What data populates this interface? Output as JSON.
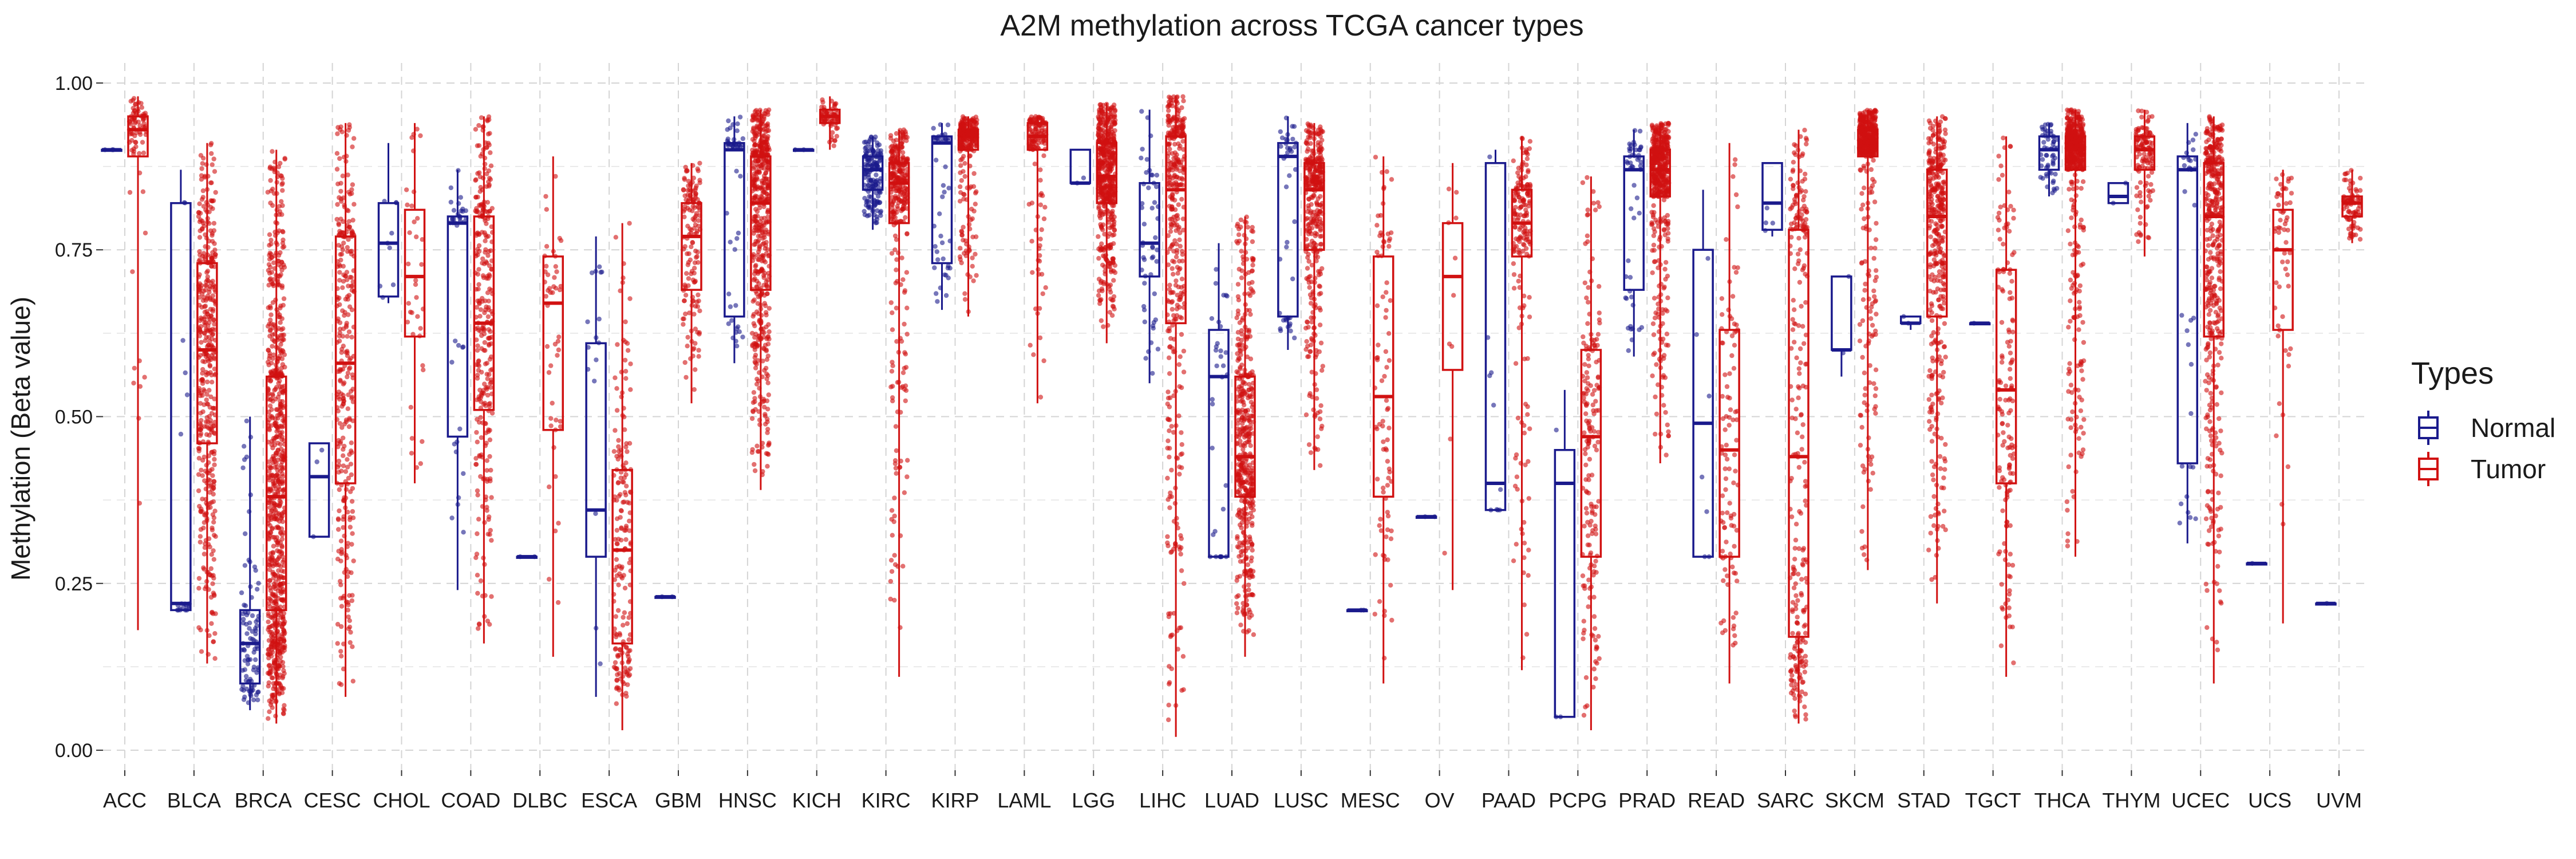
{
  "chart_data": {
    "type": "boxplot",
    "title": "A2M methylation across TCGA cancer types",
    "xlabel": "",
    "ylabel": "Methylation (Beta value)",
    "ylim": [
      -0.03,
      1.03
    ],
    "yticks": [
      "0.00",
      "0.25",
      "0.50",
      "0.75",
      "1.00"
    ],
    "grid": true,
    "legend": {
      "title": "Types",
      "position": "right",
      "entries": [
        "Normal",
        "Tumor"
      ]
    },
    "colors": {
      "Normal": "#1a1a8c",
      "Tumor": "#d11111"
    },
    "categories": [
      "ACC",
      "BLCA",
      "BRCA",
      "CESC",
      "CHOL",
      "COAD",
      "DLBC",
      "ESCA",
      "GBM",
      "HNSC",
      "KICH",
      "KIRC",
      "KIRP",
      "LAML",
      "LGG",
      "LIHC",
      "LUAD",
      "LUSC",
      "MESC",
      "OV",
      "PAAD",
      "PCPG",
      "PRAD",
      "READ",
      "SARC",
      "SKCM",
      "STAD",
      "TGCT",
      "THCA",
      "THYM",
      "UCEC",
      "UCS",
      "UVM"
    ],
    "series": [
      {
        "name": "Normal",
        "boxes": [
          {
            "category": "ACC",
            "min": 0.9,
            "q1": 0.9,
            "median": 0.9,
            "q3": 0.9,
            "max": 0.9,
            "n": 3
          },
          {
            "category": "BLCA",
            "min": 0.21,
            "q1": 0.21,
            "median": 0.22,
            "q3": 0.82,
            "max": 0.87,
            "n": 20
          },
          {
            "category": "BRCA",
            "min": 0.06,
            "q1": 0.1,
            "median": 0.16,
            "q3": 0.21,
            "max": 0.5,
            "n": 95
          },
          {
            "category": "CESC",
            "min": 0.32,
            "q1": 0.32,
            "median": 0.41,
            "q3": 0.46,
            "max": 0.46,
            "n": 3
          },
          {
            "category": "CHOL",
            "min": 0.67,
            "q1": 0.68,
            "median": 0.76,
            "q3": 0.82,
            "max": 0.91,
            "n": 9
          },
          {
            "category": "COAD",
            "min": 0.24,
            "q1": 0.47,
            "median": 0.79,
            "q3": 0.8,
            "max": 0.87,
            "n": 38
          },
          {
            "category": "DLBC",
            "min": 0.29,
            "q1": 0.29,
            "median": 0.29,
            "q3": 0.29,
            "max": 0.29,
            "n": 2
          },
          {
            "category": "ESCA",
            "min": 0.08,
            "q1": 0.29,
            "median": 0.36,
            "q3": 0.61,
            "max": 0.77,
            "n": 16
          },
          {
            "category": "GBM",
            "min": 0.23,
            "q1": 0.23,
            "median": 0.23,
            "q3": 0.23,
            "max": 0.23,
            "n": 2
          },
          {
            "category": "HNSC",
            "min": 0.58,
            "q1": 0.65,
            "median": 0.9,
            "q3": 0.91,
            "max": 0.95,
            "n": 50
          },
          {
            "category": "KICH",
            "min": 0.9,
            "q1": 0.9,
            "median": 0.9,
            "q3": 0.9,
            "max": 0.9,
            "n": 2
          },
          {
            "category": "KIRC",
            "min": 0.78,
            "q1": 0.84,
            "median": 0.87,
            "q3": 0.89,
            "max": 0.92,
            "n": 160
          },
          {
            "category": "KIRP",
            "min": 0.66,
            "q1": 0.73,
            "median": 0.91,
            "q3": 0.92,
            "max": 0.94,
            "n": 45
          },
          {
            "category": "LAML",
            "min": null,
            "q1": null,
            "median": null,
            "q3": null,
            "max": null,
            "n": 0
          },
          {
            "category": "LGG",
            "min": 0.85,
            "q1": 0.85,
            "median": 0.85,
            "q3": 0.9,
            "max": 0.9,
            "n": 2
          },
          {
            "category": "LIHC",
            "min": 0.55,
            "q1": 0.71,
            "median": 0.76,
            "q3": 0.85,
            "max": 0.96,
            "n": 50
          },
          {
            "category": "LUAD",
            "min": 0.29,
            "q1": 0.29,
            "median": 0.56,
            "q3": 0.63,
            "max": 0.76,
            "n": 32
          },
          {
            "category": "LUSC",
            "min": 0.6,
            "q1": 0.65,
            "median": 0.89,
            "q3": 0.91,
            "max": 0.95,
            "n": 42
          },
          {
            "category": "MESC",
            "min": 0.21,
            "q1": 0.21,
            "median": 0.21,
            "q3": 0.21,
            "max": 0.21,
            "n": 2
          },
          {
            "category": "OV",
            "min": 0.35,
            "q1": 0.35,
            "median": 0.35,
            "q3": 0.35,
            "max": 0.35,
            "n": 2
          },
          {
            "category": "PAAD",
            "min": 0.36,
            "q1": 0.36,
            "median": 0.4,
            "q3": 0.88,
            "max": 0.9,
            "n": 10
          },
          {
            "category": "PCPG",
            "min": 0.05,
            "q1": 0.05,
            "median": 0.4,
            "q3": 0.45,
            "max": 0.54,
            "n": 3
          },
          {
            "category": "PRAD",
            "min": 0.59,
            "q1": 0.69,
            "median": 0.87,
            "q3": 0.89,
            "max": 0.93,
            "n": 50
          },
          {
            "category": "READ",
            "min": 0.29,
            "q1": 0.29,
            "median": 0.49,
            "q3": 0.75,
            "max": 0.84,
            "n": 7
          },
          {
            "category": "SARC",
            "min": 0.77,
            "q1": 0.78,
            "median": 0.82,
            "q3": 0.88,
            "max": 0.88,
            "n": 4
          },
          {
            "category": "SKCM",
            "min": 0.56,
            "q1": 0.6,
            "median": 0.6,
            "q3": 0.71,
            "max": 0.71,
            "n": 2
          },
          {
            "category": "STAD",
            "min": 0.63,
            "q1": 0.64,
            "median": 0.64,
            "q3": 0.65,
            "max": 0.65,
            "n": 2
          },
          {
            "category": "TGCT",
            "min": 0.64,
            "q1": 0.64,
            "median": 0.64,
            "q3": 0.64,
            "max": 0.64,
            "n": 1
          },
          {
            "category": "THCA",
            "min": 0.83,
            "q1": 0.87,
            "median": 0.9,
            "q3": 0.92,
            "max": 0.94,
            "n": 56
          },
          {
            "category": "THYM",
            "min": 0.82,
            "q1": 0.82,
            "median": 0.83,
            "q3": 0.85,
            "max": 0.85,
            "n": 2
          },
          {
            "category": "UCEC",
            "min": 0.31,
            "q1": 0.43,
            "median": 0.87,
            "q3": 0.89,
            "max": 0.94,
            "n": 34
          },
          {
            "category": "UCS",
            "min": 0.28,
            "q1": 0.28,
            "median": 0.28,
            "q3": 0.28,
            "max": 0.28,
            "n": 1
          },
          {
            "category": "UVM",
            "min": 0.22,
            "q1": 0.22,
            "median": 0.22,
            "q3": 0.22,
            "max": 0.22,
            "n": 1
          }
        ]
      },
      {
        "name": "Tumor",
        "boxes": [
          {
            "category": "ACC",
            "min": 0.18,
            "q1": 0.89,
            "median": 0.93,
            "q3": 0.95,
            "max": 0.98,
            "n": 80
          },
          {
            "category": "BLCA",
            "min": 0.13,
            "q1": 0.46,
            "median": 0.6,
            "q3": 0.73,
            "max": 0.91,
            "n": 420
          },
          {
            "category": "BRCA",
            "min": 0.04,
            "q1": 0.21,
            "median": 0.38,
            "q3": 0.56,
            "max": 0.9,
            "n": 780
          },
          {
            "category": "CESC",
            "min": 0.08,
            "q1": 0.4,
            "median": 0.58,
            "q3": 0.77,
            "max": 0.94,
            "n": 300
          },
          {
            "category": "CHOL",
            "min": 0.4,
            "q1": 0.62,
            "median": 0.71,
            "q3": 0.81,
            "max": 0.94,
            "n": 36
          },
          {
            "category": "COAD",
            "min": 0.16,
            "q1": 0.51,
            "median": 0.64,
            "q3": 0.8,
            "max": 0.95,
            "n": 300
          },
          {
            "category": "DLBC",
            "min": 0.14,
            "q1": 0.48,
            "median": 0.67,
            "q3": 0.74,
            "max": 0.89,
            "n": 48
          },
          {
            "category": "ESCA",
            "min": 0.03,
            "q1": 0.16,
            "median": 0.3,
            "q3": 0.42,
            "max": 0.79,
            "n": 185
          },
          {
            "category": "GBM",
            "min": 0.52,
            "q1": 0.69,
            "median": 0.77,
            "q3": 0.82,
            "max": 0.88,
            "n": 150
          },
          {
            "category": "HNSC",
            "min": 0.39,
            "q1": 0.69,
            "median": 0.82,
            "q3": 0.89,
            "max": 0.96,
            "n": 520
          },
          {
            "category": "KICH",
            "min": 0.9,
            "q1": 0.94,
            "median": 0.95,
            "q3": 0.96,
            "max": 0.98,
            "n": 66
          },
          {
            "category": "KIRC",
            "min": 0.11,
            "q1": 0.79,
            "median": 0.85,
            "q3": 0.88,
            "max": 0.93,
            "n": 320
          },
          {
            "category": "KIRP",
            "min": 0.65,
            "q1": 0.9,
            "median": 0.92,
            "q3": 0.93,
            "max": 0.95,
            "n": 275
          },
          {
            "category": "LAML",
            "min": 0.52,
            "q1": 0.9,
            "median": 0.92,
            "q3": 0.94,
            "max": 0.95,
            "n": 140
          },
          {
            "category": "LGG",
            "min": 0.61,
            "q1": 0.82,
            "median": 0.86,
            "q3": 0.91,
            "max": 0.97,
            "n": 530
          },
          {
            "category": "LIHC",
            "min": 0.02,
            "q1": 0.64,
            "median": 0.84,
            "q3": 0.92,
            "max": 0.98,
            "n": 380
          },
          {
            "category": "LUAD",
            "min": 0.14,
            "q1": 0.38,
            "median": 0.44,
            "q3": 0.56,
            "max": 0.8,
            "n": 460
          },
          {
            "category": "LUSC",
            "min": 0.42,
            "q1": 0.75,
            "median": 0.84,
            "q3": 0.88,
            "max": 0.94,
            "n": 370
          },
          {
            "category": "MESC",
            "min": 0.1,
            "q1": 0.38,
            "median": 0.53,
            "q3": 0.74,
            "max": 0.89,
            "n": 87
          },
          {
            "category": "OV",
            "min": 0.24,
            "q1": 0.57,
            "median": 0.71,
            "q3": 0.79,
            "max": 0.88,
            "n": 10
          },
          {
            "category": "PAAD",
            "min": 0.12,
            "q1": 0.74,
            "median": 0.79,
            "q3": 0.84,
            "max": 0.92,
            "n": 185
          },
          {
            "category": "PCPG",
            "min": 0.03,
            "q1": 0.29,
            "median": 0.47,
            "q3": 0.6,
            "max": 0.86,
            "n": 180
          },
          {
            "category": "PRAD",
            "min": 0.43,
            "q1": 0.83,
            "median": 0.87,
            "q3": 0.9,
            "max": 0.94,
            "n": 500
          },
          {
            "category": "READ",
            "min": 0.1,
            "q1": 0.29,
            "median": 0.45,
            "q3": 0.63,
            "max": 0.91,
            "n": 100
          },
          {
            "category": "SARC",
            "min": 0.04,
            "q1": 0.17,
            "median": 0.44,
            "q3": 0.78,
            "max": 0.93,
            "n": 260
          },
          {
            "category": "SKCM",
            "min": 0.27,
            "q1": 0.89,
            "median": 0.91,
            "q3": 0.93,
            "max": 0.96,
            "n": 470
          },
          {
            "category": "STAD",
            "min": 0.22,
            "q1": 0.65,
            "median": 0.8,
            "q3": 0.87,
            "max": 0.95,
            "n": 390
          },
          {
            "category": "TGCT",
            "min": 0.11,
            "q1": 0.4,
            "median": 0.54,
            "q3": 0.72,
            "max": 0.92,
            "n": 150
          },
          {
            "category": "THCA",
            "min": 0.29,
            "q1": 0.87,
            "median": 0.9,
            "q3": 0.92,
            "max": 0.96,
            "n": 510
          },
          {
            "category": "THYM",
            "min": 0.74,
            "q1": 0.87,
            "median": 0.9,
            "q3": 0.92,
            "max": 0.96,
            "n": 124
          },
          {
            "category": "UCEC",
            "min": 0.1,
            "q1": 0.62,
            "median": 0.8,
            "q3": 0.88,
            "max": 0.95,
            "n": 430
          },
          {
            "category": "UCS",
            "min": 0.19,
            "q1": 0.63,
            "median": 0.75,
            "q3": 0.81,
            "max": 0.87,
            "n": 57
          },
          {
            "category": "UVM",
            "min": 0.76,
            "q1": 0.8,
            "median": 0.82,
            "q3": 0.83,
            "max": 0.87,
            "n": 80
          }
        ]
      }
    ]
  }
}
